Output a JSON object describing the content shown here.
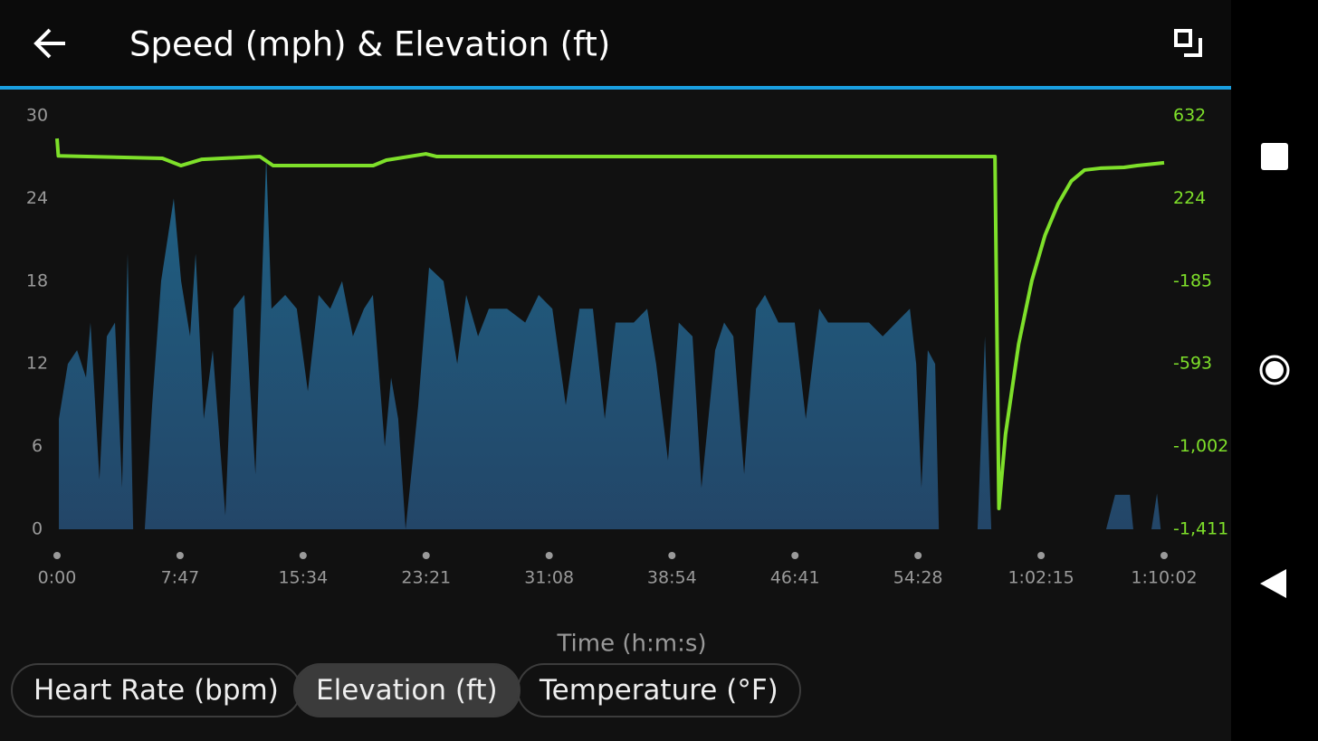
{
  "header": {
    "title": "Speed (mph) & Elevation (ft)"
  },
  "chart_data": {
    "type": "combo",
    "x_label": "Time (h:m:s)",
    "xlim": [
      0,
      4202
    ],
    "xticks": [
      {
        "value": 0,
        "label": "0:00"
      },
      {
        "value": 467,
        "label": "7:47"
      },
      {
        "value": 934,
        "label": "15:34"
      },
      {
        "value": 1401,
        "label": "23:21"
      },
      {
        "value": 1868,
        "label": "31:08"
      },
      {
        "value": 2334,
        "label": "38:54"
      },
      {
        "value": 2801,
        "label": "46:41"
      },
      {
        "value": 3268,
        "label": "54:28"
      },
      {
        "value": 3735,
        "label": "1:02:15"
      },
      {
        "value": 4202,
        "label": "1:10:02"
      }
    ],
    "ylim": [
      0,
      30
    ],
    "yticks": [
      0,
      6,
      12,
      18,
      24,
      30
    ],
    "y2lim": [
      -1411,
      632
    ],
    "y2ticks": [
      {
        "value": -1411,
        "label": "-1,411"
      },
      {
        "value": -1002,
        "label": "-1,002"
      },
      -593,
      -185,
      224,
      632
    ],
    "series": [
      {
        "name": "Speed (mph)",
        "type": "area",
        "color": "#1f5d7e",
        "x": [
          7,
          41,
          76,
          110,
          127,
          161,
          189,
          220,
          247,
          268,
          289,
          333,
          361,
          395,
          443,
          471,
          505,
          526,
          557,
          591,
          639,
          670,
          711,
          753,
          794,
          814,
          866,
          910,
          952,
          993,
          1037,
          1082,
          1123,
          1165,
          1199,
          1244,
          1268,
          1295,
          1323,
          1350,
          1371,
          1412,
          1467,
          1519,
          1553,
          1598,
          1639,
          1708,
          1777,
          1828,
          1880,
          1931,
          1983,
          2034,
          2079,
          2120,
          2189,
          2240,
          2274,
          2319,
          2360,
          2412,
          2446,
          2498,
          2532,
          2567,
          2608,
          2653,
          2687,
          2738,
          2800,
          2842,
          2893,
          2927,
          2979,
          3030,
          3082,
          3134,
          3185,
          3237,
          3261,
          3281,
          3305,
          3333,
          3347,
          3494,
          3522,
          3546,
          3982,
          4016,
          4044,
          4072,
          4085,
          4154,
          4175,
          4189
        ],
        "values": [
          8,
          12,
          13,
          11,
          15,
          3.6,
          14,
          15,
          3,
          20,
          0,
          0,
          9,
          18,
          24,
          18,
          14,
          20,
          8,
          13,
          1,
          16,
          17,
          4,
          27,
          16,
          17,
          16,
          10,
          17,
          16,
          18,
          14,
          16,
          17,
          6,
          11,
          8,
          0,
          5,
          9,
          19,
          18,
          12,
          17,
          14,
          16,
          16,
          15,
          17,
          16,
          9,
          16,
          16,
          8,
          15,
          15,
          16,
          12,
          5,
          15,
          14,
          3,
          13,
          15,
          14,
          4,
          16,
          17,
          15,
          15,
          8,
          16,
          15,
          15,
          15,
          15,
          14,
          15,
          16,
          12,
          3,
          13,
          12,
          0,
          0,
          14,
          0,
          0,
          2.5,
          2.5,
          2.5,
          0,
          0,
          2.6,
          0
        ]
      },
      {
        "name": "Elevation (ft)",
        "type": "line",
        "axis": "y2",
        "color": "#7ee02a",
        "x": [
          0,
          5,
          400,
          470,
          550,
          770,
          820,
          1200,
          1250,
          1400,
          1440,
          2000,
          3560,
          3575,
          3600,
          3650,
          3700,
          3750,
          3800,
          3850,
          3900,
          3960,
          4050,
          4100,
          4202
        ],
        "values": [
          520,
          434,
          422,
          386,
          417,
          431,
          386,
          386,
          413,
          444,
          431,
          431,
          431,
          -1308,
          -942,
          -495,
          -182,
          42,
          198,
          310,
          364,
          373,
          377,
          386,
          400
        ]
      }
    ]
  },
  "buttons": [
    {
      "label": "Heart Rate (bpm)",
      "selected": false
    },
    {
      "label": "Elevation (ft)",
      "selected": true
    },
    {
      "label": "Temperature (°F)",
      "selected": false
    }
  ]
}
